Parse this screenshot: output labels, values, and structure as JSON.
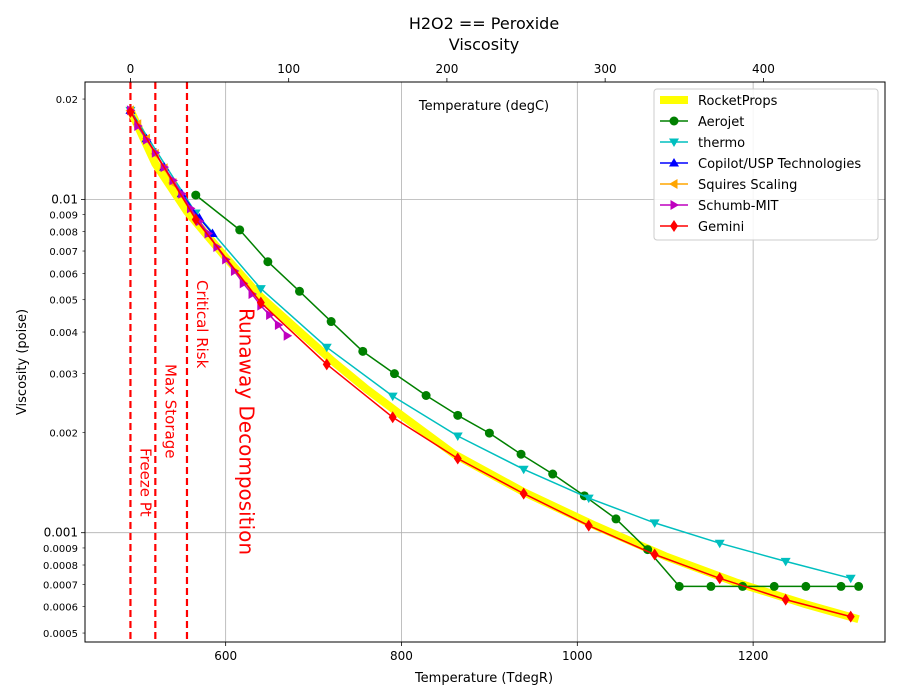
{
  "chart_data": {
    "type": "line",
    "title_line1": "H2O2 == Peroxide",
    "title_line2": "Viscosity",
    "xlabel": "Temperature (TdegR)",
    "ylabel": "Viscosity (poise)",
    "top_axis_label": "Temperature (degC)",
    "x_scale": "linear",
    "y_scale": "log",
    "xlim": [
      440,
      1350
    ],
    "ylim": [
      0.00047,
      0.0225
    ],
    "grid": true,
    "legend_position": "upper-right",
    "x_ticks": [
      600,
      800,
      1000,
      1200
    ],
    "top_ticks": [
      0,
      100,
      200,
      300,
      400
    ],
    "y_major_ticks": [
      {
        "v": 0.001,
        "label": "0.001"
      },
      {
        "v": 0.01,
        "label": "0.01"
      }
    ],
    "y_minor_ticks": [
      {
        "v": 0.0005,
        "label": "0.0005"
      },
      {
        "v": 0.0006,
        "label": "0.0006"
      },
      {
        "v": 0.0007,
        "label": "0.0007"
      },
      {
        "v": 0.0008,
        "label": "0.0008"
      },
      {
        "v": 0.0009,
        "label": "0.0009"
      },
      {
        "v": 0.002,
        "label": "0.002"
      },
      {
        "v": 0.003,
        "label": "0.003"
      },
      {
        "v": 0.004,
        "label": "0.004"
      },
      {
        "v": 0.005,
        "label": "0.005"
      },
      {
        "v": 0.006,
        "label": "0.006"
      },
      {
        "v": 0.007,
        "label": "0.007"
      },
      {
        "v": 0.008,
        "label": "0.008"
      },
      {
        "v": 0.009,
        "label": "0.009"
      },
      {
        "v": 0.02,
        "label": "0.02"
      }
    ],
    "vlines": [
      {
        "x": 491.7,
        "label": "Freeze Pt",
        "size": "small"
      },
      {
        "x": 520,
        "label": "Max Storage",
        "size": "small"
      },
      {
        "x": 556,
        "label": "Critical Risk",
        "size": "small"
      },
      {
        "x": 600,
        "label": "Runaway Decomposition",
        "size": "large"
      }
    ],
    "series": [
      {
        "name": "RocketProps",
        "color": "#ffff00",
        "marker": "none",
        "width": 8,
        "x": [
          491.7,
          520,
          556,
          600,
          640,
          680,
          720,
          760,
          800,
          860,
          940,
          1020,
          1100,
          1180,
          1260,
          1320
        ],
        "y": [
          0.0185,
          0.0128,
          0.0092,
          0.0067,
          0.0051,
          0.0041,
          0.0033,
          0.0027,
          0.00225,
          0.00172,
          0.00132,
          0.00105,
          0.00085,
          0.00071,
          0.00061,
          0.00055
        ]
      },
      {
        "name": "Aerojet",
        "color": "#008000",
        "marker": "circle",
        "x": [
          566,
          616,
          648,
          684,
          720,
          756,
          792,
          828,
          864,
          900,
          936,
          972,
          1008,
          1044,
          1080,
          1116,
          1152,
          1188,
          1224,
          1260,
          1300,
          1320
        ],
        "y": [
          0.0103,
          0.0081,
          0.0065,
          0.0053,
          0.0043,
          0.0035,
          0.003,
          0.00258,
          0.00225,
          0.00199,
          0.00172,
          0.0015,
          0.00129,
          0.0011,
          0.00089,
          0.00069,
          0.00069,
          0.00069,
          0.00069,
          0.00069,
          0.00069,
          0.00069
        ]
      },
      {
        "name": "thermo",
        "color": "#00bfbf",
        "marker": "triangle-down",
        "x": [
          491.7,
          566,
          640,
          715,
          790,
          864,
          939,
          1013,
          1088,
          1162,
          1237,
          1311
        ],
        "y": [
          0.0185,
          0.0091,
          0.0054,
          0.0036,
          0.00257,
          0.00195,
          0.00155,
          0.00127,
          0.00107,
          0.00093,
          0.00082,
          0.00073
        ]
      },
      {
        "name": "Copilot/USP Technologies",
        "color": "#0000ff",
        "marker": "triangle-up",
        "x": [
          491.7,
          510,
          530,
          550,
          570,
          585
        ],
        "y": [
          0.0185,
          0.0152,
          0.0125,
          0.0104,
          0.0088,
          0.0079
        ]
      },
      {
        "name": "Squires Scaling",
        "color": "#ffa500",
        "marker": "triangle-left",
        "x": [
          491.7,
          500,
          510,
          520,
          530,
          540
        ],
        "y": [
          0.0185,
          0.0168,
          0.0152,
          0.0137,
          0.0124,
          0.0112
        ]
      },
      {
        "name": "Schumb-MIT",
        "color": "#bf00bf",
        "marker": "triangle-right",
        "x": [
          491.7,
          500,
          510,
          520,
          530,
          540,
          550,
          560,
          570,
          580,
          590,
          600,
          610,
          620,
          630,
          640,
          650,
          660,
          670
        ],
        "y": [
          0.0185,
          0.0166,
          0.0151,
          0.0138,
          0.0125,
          0.0114,
          0.0104,
          0.0094,
          0.0086,
          0.0079,
          0.0072,
          0.0066,
          0.0061,
          0.0056,
          0.0052,
          0.0048,
          0.0045,
          0.0042,
          0.0039
        ]
      },
      {
        "name": "Gemini",
        "color": "#ff0000",
        "marker": "diamond",
        "x": [
          491.7,
          566,
          640,
          715,
          790,
          864,
          939,
          1013,
          1088,
          1162,
          1237,
          1311
        ],
        "y": [
          0.0183,
          0.0087,
          0.0049,
          0.0032,
          0.00222,
          0.00167,
          0.00131,
          0.00105,
          0.00086,
          0.00073,
          0.00063,
          0.00056
        ]
      }
    ]
  }
}
